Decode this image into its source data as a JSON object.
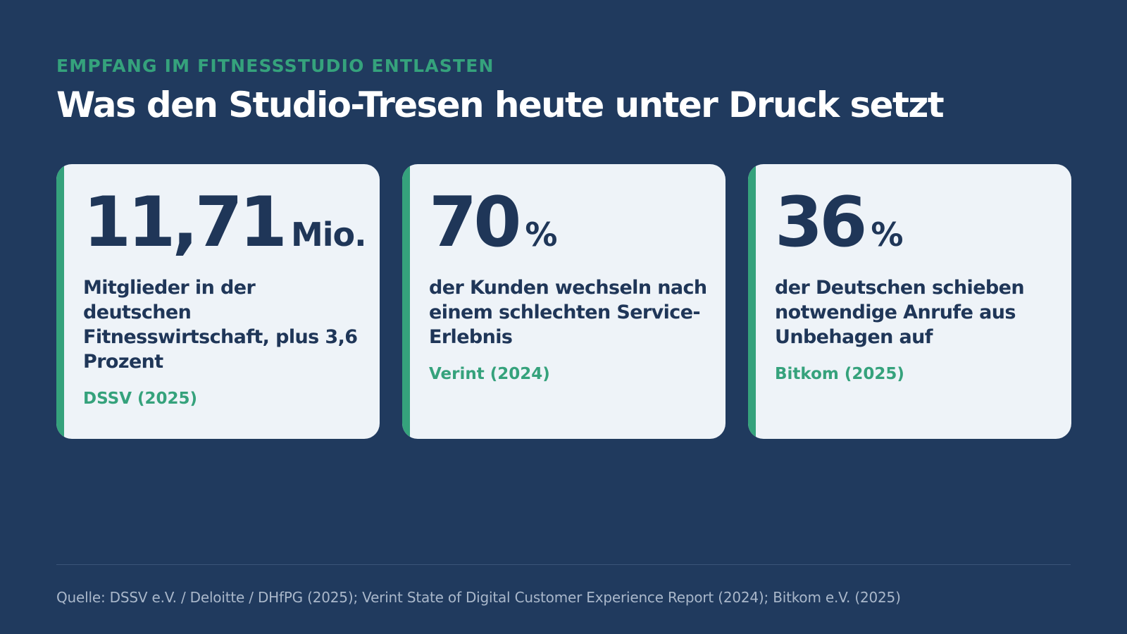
{
  "eyebrow": "EMPFANG IM FITNESSSTUDIO ENTLASTEN",
  "title": "Was den Studio-Tresen heute unter Druck setzt",
  "cards": [
    {
      "number": "11,71",
      "unit": "Mio.",
      "description": "Mitglieder in der deutschen Fitnesswirtschaft, plus 3,6 Prozent",
      "source": "DSSV (2025)"
    },
    {
      "number": "70",
      "unit": "%",
      "description": "der Kunden wechseln nach einem schlechten Service-Erlebnis",
      "source": "Verint (2024)"
    },
    {
      "number": "36",
      "unit": "%",
      "description": "der Deutschen schieben notwendige Anrufe aus Unbehagen auf",
      "source": "Bitkom (2025)"
    }
  ],
  "footnote": "Quelle: DSSV e.V. / Deloitte / DHfPG (2025); Verint State of Digital Customer Experience Report (2024); Bitkom e.V. (2025)",
  "colors": {
    "background": "#203a5e",
    "accent": "#35a27c",
    "card": "#eef3f8",
    "text_dark": "#1f3658"
  }
}
